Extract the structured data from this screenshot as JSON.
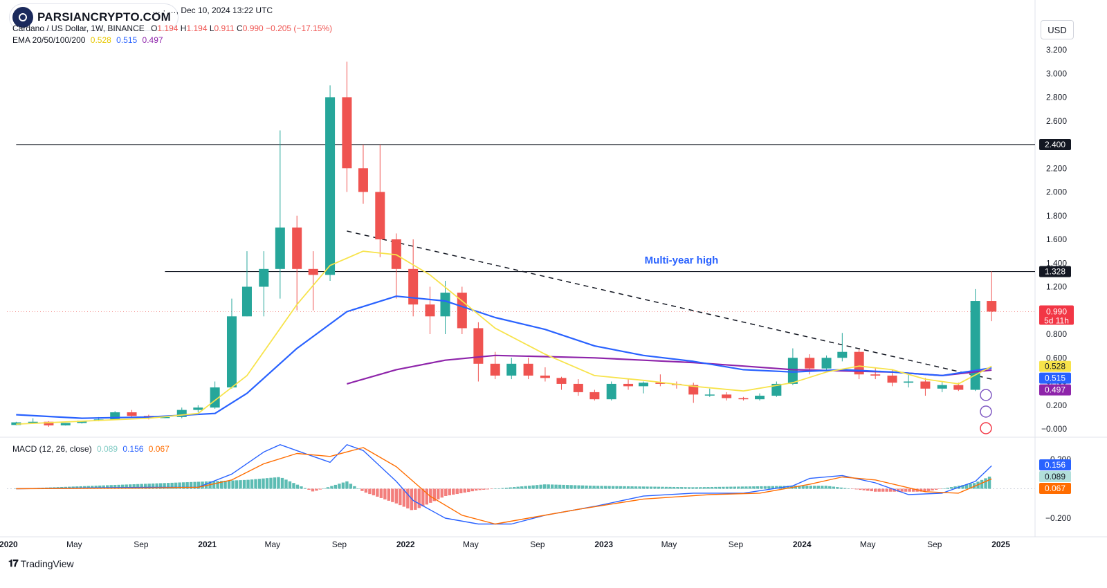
{
  "header": {
    "source_line": "… · …, Dec 10, 2024 13:22 UTC",
    "symbol": "Cardano / US Dollar, 1W, BINANCE",
    "ohlc": {
      "o_label": "O",
      "o": "1.194",
      "h_label": "H",
      "h": "1.194",
      "l_label": "L",
      "l": "0.911",
      "c_label": "C",
      "c": "0.990",
      "change": "−0.205 (−17.15%)"
    },
    "ema_label": "EMA 20/50/100/200",
    "ema_values": [
      "0.528",
      "0.515",
      "0.497"
    ],
    "macd_label": "MACD (12, 26, close)",
    "macd_values": [
      "0.089",
      "0.156",
      "0.067"
    ]
  },
  "logo_text": "PARSIANCRYPTO.COM",
  "currency_button": "USD",
  "footer_brand": "TradingView",
  "annotation": "Multi-year high",
  "colors": {
    "up": "#26a69a",
    "down": "#ef5350",
    "ema20": "#f7e34b",
    "ema50": "#2962ff",
    "ema200": "#8e24aa",
    "macd": "#2962ff",
    "signal": "#ff6d00",
    "annotation": "#2962ff"
  },
  "chart_data": [
    {
      "type": "candlestick",
      "title": "Cardano / US Dollar, 1W, BINANCE",
      "y_ticks": [
        "3.200",
        "3.000",
        "2.800",
        "2.600",
        "2.400",
        "2.200",
        "2.000",
        "1.800",
        "1.600",
        "1.400",
        "1.200",
        "1.000",
        "0.800",
        "0.600",
        "0.400",
        "0.200",
        "−0.000"
      ],
      "ylim": [
        -0.05,
        3.3
      ],
      "x_ticks": [
        "2020",
        "May",
        "Sep",
        "2021",
        "May",
        "Sep",
        "2022",
        "May",
        "Sep",
        "2023",
        "May",
        "Sep",
        "2024",
        "May",
        "Sep",
        "2025"
      ],
      "x_tick_dates": [
        "2020-01",
        "2020-05",
        "2020-09",
        "2021-01",
        "2021-05",
        "2021-09",
        "2022-01",
        "2022-05",
        "2022-09",
        "2023-01",
        "2023-05",
        "2023-09",
        "2024-01",
        "2024-05",
        "2024-09",
        "2025-01"
      ],
      "horizontal_lines": [
        {
          "value": 2.4,
          "label": "2.400",
          "start": "2020-01"
        },
        {
          "value": 1.328,
          "label": "1.328",
          "start": "2020-10"
        }
      ],
      "trendline": {
        "from": [
          "2021-09",
          1.67
        ],
        "to": [
          "2024-12",
          0.42
        ],
        "style": "dashed"
      },
      "current_price": {
        "value": 0.99,
        "label": "0.990",
        "countdown": "5d 11h"
      },
      "ema_badges": [
        {
          "value": 0.528,
          "label": "0.528"
        },
        {
          "value": 0.515,
          "label": "0.515"
        },
        {
          "value": 0.497,
          "label": "0.497"
        }
      ],
      "candles_monthly_approx": [
        {
          "d": "2020-01",
          "o": 0.033,
          "h": 0.06,
          "l": 0.031,
          "c": 0.055
        },
        {
          "d": "2020-02",
          "o": 0.055,
          "h": 0.09,
          "l": 0.05,
          "c": 0.06
        },
        {
          "d": "2020-03",
          "o": 0.06,
          "h": 0.065,
          "l": 0.018,
          "c": 0.03
        },
        {
          "d": "2020-04",
          "o": 0.03,
          "h": 0.05,
          "l": 0.028,
          "c": 0.05
        },
        {
          "d": "2020-05",
          "o": 0.05,
          "h": 0.07,
          "l": 0.045,
          "c": 0.07
        },
        {
          "d": "2020-06",
          "o": 0.07,
          "h": 0.1,
          "l": 0.065,
          "c": 0.08
        },
        {
          "d": "2020-07",
          "o": 0.08,
          "h": 0.15,
          "l": 0.08,
          "c": 0.14
        },
        {
          "d": "2020-08",
          "o": 0.14,
          "h": 0.16,
          "l": 0.1,
          "c": 0.11
        },
        {
          "d": "2020-09",
          "o": 0.11,
          "h": 0.12,
          "l": 0.08,
          "c": 0.1
        },
        {
          "d": "2020-10",
          "o": 0.1,
          "h": 0.11,
          "l": 0.09,
          "c": 0.1
        },
        {
          "d": "2020-11",
          "o": 0.1,
          "h": 0.18,
          "l": 0.09,
          "c": 0.16
        },
        {
          "d": "2020-12",
          "o": 0.16,
          "h": 0.2,
          "l": 0.14,
          "c": 0.18
        },
        {
          "d": "2021-01",
          "o": 0.18,
          "h": 0.4,
          "l": 0.17,
          "c": 0.35
        },
        {
          "d": "2021-02",
          "o": 0.35,
          "h": 1.1,
          "l": 0.34,
          "c": 0.95
        },
        {
          "d": "2021-03",
          "o": 0.95,
          "h": 1.5,
          "l": 0.95,
          "c": 1.2
        },
        {
          "d": "2021-04",
          "o": 1.2,
          "h": 1.5,
          "l": 0.95,
          "c": 1.35
        },
        {
          "d": "2021-05",
          "o": 1.35,
          "h": 2.52,
          "l": 1.1,
          "c": 1.7
        },
        {
          "d": "2021-06",
          "o": 1.7,
          "h": 1.8,
          "l": 1.0,
          "c": 1.35
        },
        {
          "d": "2021-07",
          "o": 1.35,
          "h": 1.5,
          "l": 1.0,
          "c": 1.3
        },
        {
          "d": "2021-08",
          "o": 1.3,
          "h": 2.9,
          "l": 1.25,
          "c": 2.8
        },
        {
          "d": "2021-09",
          "o": 2.8,
          "h": 3.1,
          "l": 2.0,
          "c": 2.2
        },
        {
          "d": "2021-10",
          "o": 2.2,
          "h": 2.4,
          "l": 1.9,
          "c": 2.0
        },
        {
          "d": "2021-11",
          "o": 2.0,
          "h": 2.4,
          "l": 1.45,
          "c": 1.6
        },
        {
          "d": "2021-12",
          "o": 1.6,
          "h": 1.65,
          "l": 1.1,
          "c": 1.35
        },
        {
          "d": "2022-01",
          "o": 1.35,
          "h": 1.6,
          "l": 0.95,
          "c": 1.05
        },
        {
          "d": "2022-02",
          "o": 1.05,
          "h": 1.2,
          "l": 0.8,
          "c": 0.95
        },
        {
          "d": "2022-03",
          "o": 0.95,
          "h": 1.25,
          "l": 0.8,
          "c": 1.15
        },
        {
          "d": "2022-04",
          "o": 1.15,
          "h": 1.2,
          "l": 0.8,
          "c": 0.85
        },
        {
          "d": "2022-05",
          "o": 0.85,
          "h": 0.9,
          "l": 0.4,
          "c": 0.55
        },
        {
          "d": "2022-06",
          "o": 0.55,
          "h": 0.65,
          "l": 0.42,
          "c": 0.45
        },
        {
          "d": "2022-07",
          "o": 0.45,
          "h": 0.6,
          "l": 0.42,
          "c": 0.55
        },
        {
          "d": "2022-08",
          "o": 0.55,
          "h": 0.6,
          "l": 0.42,
          "c": 0.45
        },
        {
          "d": "2022-09",
          "o": 0.45,
          "h": 0.52,
          "l": 0.4,
          "c": 0.43
        },
        {
          "d": "2022-10",
          "o": 0.43,
          "h": 0.44,
          "l": 0.33,
          "c": 0.38
        },
        {
          "d": "2022-11",
          "o": 0.38,
          "h": 0.42,
          "l": 0.28,
          "c": 0.31
        },
        {
          "d": "2022-12",
          "o": 0.31,
          "h": 0.33,
          "l": 0.24,
          "c": 0.25
        },
        {
          "d": "2023-01",
          "o": 0.25,
          "h": 0.4,
          "l": 0.24,
          "c": 0.38
        },
        {
          "d": "2023-02",
          "o": 0.38,
          "h": 0.42,
          "l": 0.33,
          "c": 0.36
        },
        {
          "d": "2023-03",
          "o": 0.36,
          "h": 0.4,
          "l": 0.3,
          "c": 0.39
        },
        {
          "d": "2023-04",
          "o": 0.39,
          "h": 0.46,
          "l": 0.36,
          "c": 0.38
        },
        {
          "d": "2023-05",
          "o": 0.38,
          "h": 0.4,
          "l": 0.34,
          "c": 0.37
        },
        {
          "d": "2023-06",
          "o": 0.37,
          "h": 0.39,
          "l": 0.22,
          "c": 0.29
        },
        {
          "d": "2023-07",
          "o": 0.29,
          "h": 0.34,
          "l": 0.27,
          "c": 0.29
        },
        {
          "d": "2023-08",
          "o": 0.29,
          "h": 0.31,
          "l": 0.24,
          "c": 0.26
        },
        {
          "d": "2023-09",
          "o": 0.26,
          "h": 0.27,
          "l": 0.24,
          "c": 0.25
        },
        {
          "d": "2023-10",
          "o": 0.25,
          "h": 0.3,
          "l": 0.24,
          "c": 0.28
        },
        {
          "d": "2023-11",
          "o": 0.28,
          "h": 0.4,
          "l": 0.27,
          "c": 0.38
        },
        {
          "d": "2023-12",
          "o": 0.38,
          "h": 0.68,
          "l": 0.37,
          "c": 0.6
        },
        {
          "d": "2024-01",
          "o": 0.6,
          "h": 0.63,
          "l": 0.46,
          "c": 0.51
        },
        {
          "d": "2024-02",
          "o": 0.51,
          "h": 0.62,
          "l": 0.49,
          "c": 0.6
        },
        {
          "d": "2024-03",
          "o": 0.6,
          "h": 0.81,
          "l": 0.57,
          "c": 0.65
        },
        {
          "d": "2024-04",
          "o": 0.65,
          "h": 0.67,
          "l": 0.42,
          "c": 0.46
        },
        {
          "d": "2024-05",
          "o": 0.46,
          "h": 0.52,
          "l": 0.42,
          "c": 0.45
        },
        {
          "d": "2024-06",
          "o": 0.45,
          "h": 0.5,
          "l": 0.36,
          "c": 0.39
        },
        {
          "d": "2024-07",
          "o": 0.39,
          "h": 0.47,
          "l": 0.35,
          "c": 0.4
        },
        {
          "d": "2024-08",
          "o": 0.4,
          "h": 0.43,
          "l": 0.28,
          "c": 0.34
        },
        {
          "d": "2024-09",
          "o": 0.34,
          "h": 0.4,
          "l": 0.31,
          "c": 0.37
        },
        {
          "d": "2024-10",
          "o": 0.37,
          "h": 0.39,
          "l": 0.32,
          "c": 0.33
        },
        {
          "d": "2024-11",
          "o": 0.33,
          "h": 1.18,
          "l": 0.32,
          "c": 1.08
        },
        {
          "d": "2024-12",
          "o": 1.08,
          "h": 1.33,
          "l": 0.91,
          "c": 0.99
        }
      ],
      "ema20": [
        [
          "2020-01",
          0.04
        ],
        [
          "2020-09",
          0.09
        ],
        [
          "2020-12",
          0.13
        ],
        [
          "2021-03",
          0.45
        ],
        [
          "2021-06",
          1.05
        ],
        [
          "2021-08",
          1.38
        ],
        [
          "2021-10",
          1.5
        ],
        [
          "2021-12",
          1.47
        ],
        [
          "2022-02",
          1.3
        ],
        [
          "2022-04",
          1.08
        ],
        [
          "2022-06",
          0.85
        ],
        [
          "2022-09",
          0.63
        ],
        [
          "2022-12",
          0.45
        ],
        [
          "2023-03",
          0.41
        ],
        [
          "2023-06",
          0.36
        ],
        [
          "2023-09",
          0.32
        ],
        [
          "2023-12",
          0.39
        ],
        [
          "2024-02",
          0.48
        ],
        [
          "2024-04",
          0.53
        ],
        [
          "2024-06",
          0.5
        ],
        [
          "2024-08",
          0.42
        ],
        [
          "2024-10",
          0.38
        ],
        [
          "2024-12",
          0.528
        ]
      ],
      "ema50": [
        [
          "2020-01",
          0.12
        ],
        [
          "2020-05",
          0.09
        ],
        [
          "2020-09",
          0.1
        ],
        [
          "2021-01",
          0.13
        ],
        [
          "2021-03",
          0.3
        ],
        [
          "2021-06",
          0.68
        ],
        [
          "2021-09",
          0.99
        ],
        [
          "2021-12",
          1.12
        ],
        [
          "2022-03",
          1.08
        ],
        [
          "2022-06",
          0.94
        ],
        [
          "2022-09",
          0.84
        ],
        [
          "2022-12",
          0.7
        ],
        [
          "2023-03",
          0.62
        ],
        [
          "2023-06",
          0.57
        ],
        [
          "2023-09",
          0.5
        ],
        [
          "2023-12",
          0.48
        ],
        [
          "2024-03",
          0.5
        ],
        [
          "2024-06",
          0.48
        ],
        [
          "2024-09",
          0.45
        ],
        [
          "2024-12",
          0.515
        ]
      ],
      "ema200": [
        [
          "2021-09",
          0.38
        ],
        [
          "2021-12",
          0.5
        ],
        [
          "2022-03",
          0.58
        ],
        [
          "2022-06",
          0.62
        ],
        [
          "2022-09",
          0.61
        ],
        [
          "2022-12",
          0.6
        ],
        [
          "2023-03",
          0.58
        ],
        [
          "2023-06",
          0.56
        ],
        [
          "2023-09",
          0.53
        ],
        [
          "2023-12",
          0.5
        ],
        [
          "2024-03",
          0.49
        ],
        [
          "2024-06",
          0.48
        ],
        [
          "2024-09",
          0.45
        ],
        [
          "2024-12",
          0.497
        ]
      ]
    },
    {
      "type": "line",
      "title": "MACD (12, 26, close)",
      "y_ticks": [
        "0.200",
        "−0.200"
      ],
      "ylim": [
        -0.3,
        0.32
      ],
      "x_ticks": [
        "2020",
        "May",
        "Sep",
        "2021",
        "May",
        "Sep",
        "2022",
        "May",
        "Sep",
        "2023",
        "May",
        "Sep",
        "2024",
        "May",
        "Sep",
        "2025"
      ],
      "series": [
        {
          "name": "MACD",
          "values": [
            [
              "2020-01",
              0.0
            ],
            [
              "2020-09",
              0.01
            ],
            [
              "2020-12",
              0.01
            ],
            [
              "2021-02",
              0.1
            ],
            [
              "2021-04",
              0.25
            ],
            [
              "2021-05",
              0.3
            ],
            [
              "2021-07",
              0.22
            ],
            [
              "2021-08",
              0.18
            ],
            [
              "2021-09",
              0.3
            ],
            [
              "2021-10",
              0.26
            ],
            [
              "2021-12",
              0.05
            ],
            [
              "2022-01",
              -0.08
            ],
            [
              "2022-03",
              -0.2
            ],
            [
              "2022-05",
              -0.24
            ],
            [
              "2022-07",
              -0.24
            ],
            [
              "2022-09",
              -0.18
            ],
            [
              "2022-12",
              -0.12
            ],
            [
              "2023-03",
              -0.05
            ],
            [
              "2023-06",
              -0.03
            ],
            [
              "2023-09",
              -0.03
            ],
            [
              "2023-12",
              0.02
            ],
            [
              "2024-01",
              0.07
            ],
            [
              "2024-03",
              0.09
            ],
            [
              "2024-05",
              0.04
            ],
            [
              "2024-07",
              -0.04
            ],
            [
              "2024-09",
              -0.03
            ],
            [
              "2024-11",
              0.05
            ],
            [
              "2024-12",
              0.156
            ]
          ]
        },
        {
          "name": "Signal",
          "values": [
            [
              "2020-01",
              0.0
            ],
            [
              "2020-09",
              0.005
            ],
            [
              "2020-12",
              0.01
            ],
            [
              "2021-02",
              0.06
            ],
            [
              "2021-04",
              0.17
            ],
            [
              "2021-06",
              0.24
            ],
            [
              "2021-08",
              0.22
            ],
            [
              "2021-10",
              0.28
            ],
            [
              "2021-12",
              0.15
            ],
            [
              "2022-02",
              -0.05
            ],
            [
              "2022-04",
              -0.18
            ],
            [
              "2022-06",
              -0.24
            ],
            [
              "2022-08",
              -0.2
            ],
            [
              "2022-11",
              -0.14
            ],
            [
              "2023-03",
              -0.07
            ],
            [
              "2023-07",
              -0.04
            ],
            [
              "2023-10",
              -0.03
            ],
            [
              "2024-01",
              0.03
            ],
            [
              "2024-03",
              0.08
            ],
            [
              "2024-05",
              0.06
            ],
            [
              "2024-08",
              -0.02
            ],
            [
              "2024-10",
              -0.03
            ],
            [
              "2024-12",
              0.067
            ]
          ]
        },
        {
          "name": "Histogram",
          "values": [
            [
              "2020-01",
              0.0
            ],
            [
              "2021-03",
              0.06
            ],
            [
              "2021-05",
              0.08
            ],
            [
              "2021-07",
              -0.02
            ],
            [
              "2021-09",
              0.05
            ],
            [
              "2021-10",
              -0.02
            ],
            [
              "2021-12",
              -0.1
            ],
            [
              "2022-01",
              -0.15
            ],
            [
              "2022-03",
              -0.05
            ],
            [
              "2022-05",
              -0.01
            ],
            [
              "2022-09",
              0.03
            ],
            [
              "2022-12",
              0.02
            ],
            [
              "2023-06",
              0.01
            ],
            [
              "2023-12",
              0.02
            ],
            [
              "2024-02",
              0.02
            ],
            [
              "2024-05",
              -0.02
            ],
            [
              "2024-08",
              -0.02
            ],
            [
              "2024-11",
              0.04
            ],
            [
              "2024-12",
              0.089
            ]
          ]
        }
      ],
      "value_badges": [
        {
          "label": "0.156"
        },
        {
          "label": "0.089"
        },
        {
          "label": "0.067"
        }
      ]
    }
  ]
}
